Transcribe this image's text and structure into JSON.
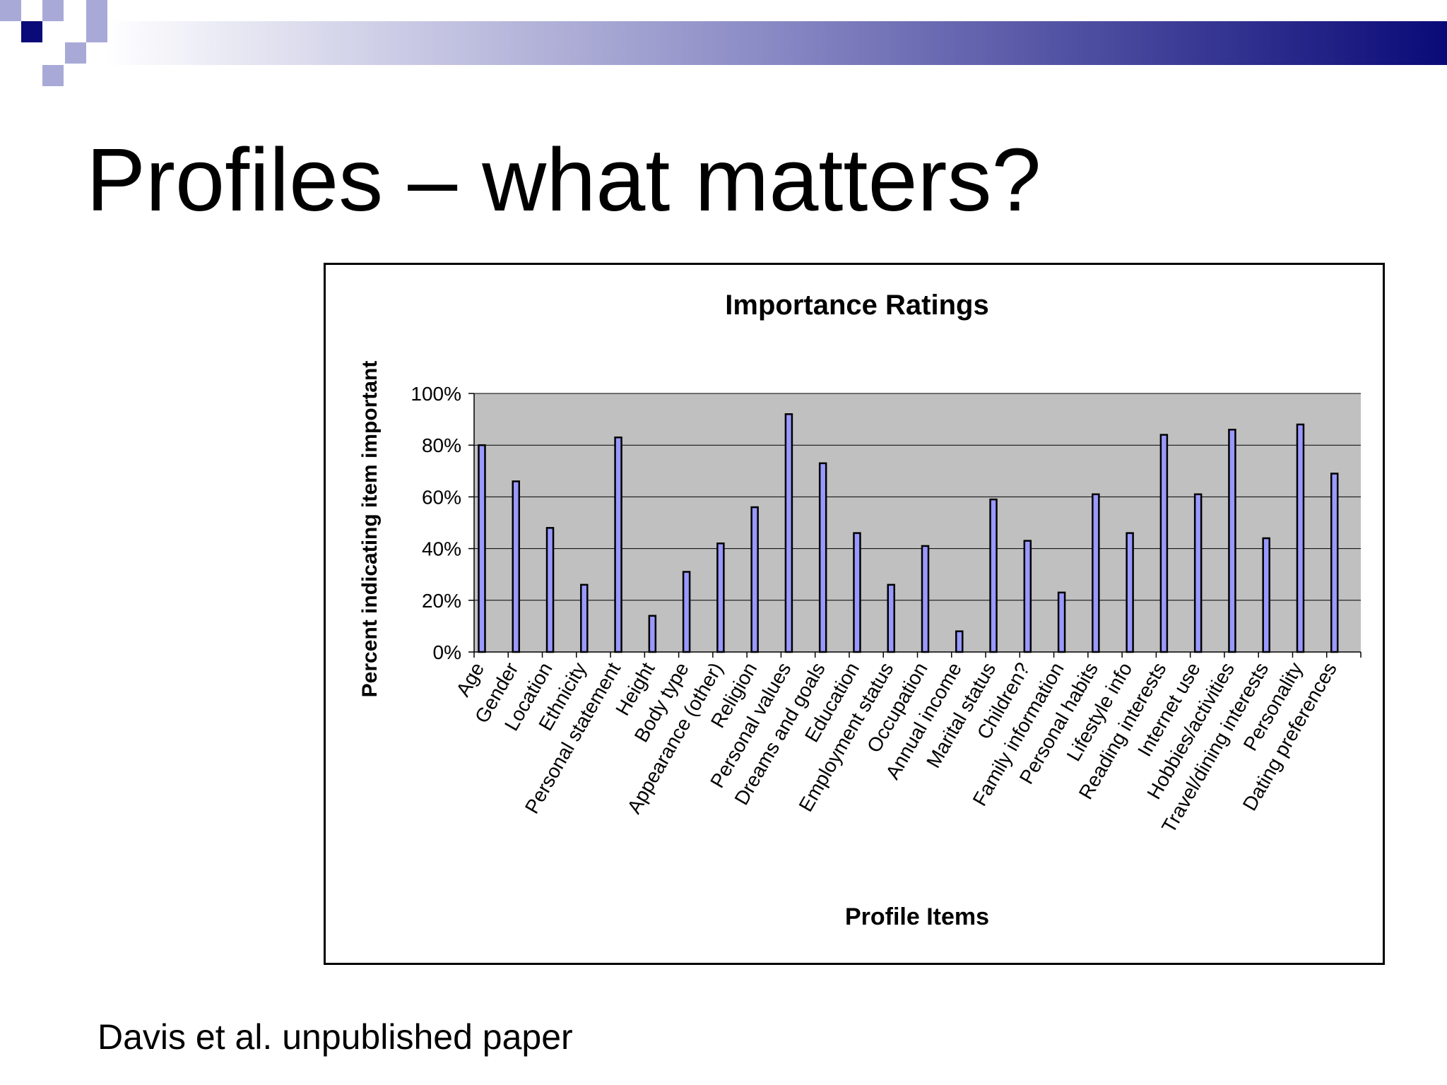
{
  "slide": {
    "title": "Profiles – what matters?",
    "source": "Davis et al. unpublished paper"
  },
  "colors": {
    "header_dark": "#0a0a78",
    "header_mid": "#8888c4",
    "header_light": "#ffffff",
    "square_dark": "#0a0a78",
    "square_light": "#a9a9d8",
    "plot_background": "#c0c0c0",
    "bar_fill": "#9999ff",
    "bar_stroke": "#000000"
  },
  "chart_data": {
    "type": "bar",
    "title": "Importance Ratings",
    "xlabel": "Profile Items",
    "ylabel": "Percent indicating item important",
    "ylim": [
      0,
      100
    ],
    "y_ticks": [
      "0%",
      "20%",
      "40%",
      "60%",
      "80%",
      "100%"
    ],
    "grid": true,
    "legend": "none",
    "categories": [
      "Age",
      "Gender",
      "Location",
      "Ethnicity",
      "Personal statement",
      "Height",
      "Body type",
      "Appearance (other)",
      "Religion",
      "Personal values",
      "Dreams and goals",
      "Education",
      "Employment status",
      "Occupation",
      "Annual income",
      "Marital status",
      "Children?",
      "Family information",
      "Personal habits",
      "Lifestyle info",
      "Reading interests",
      "Internet use",
      "Hobbies/activities",
      "Travel/dining interests",
      "Personality",
      "Dating preferences"
    ],
    "values": [
      80,
      66,
      48,
      26,
      83,
      14,
      31,
      42,
      56,
      92,
      73,
      46,
      26,
      41,
      8,
      59,
      43,
      23,
      61,
      46,
      84,
      61,
      86,
      44,
      88,
      69
    ]
  }
}
